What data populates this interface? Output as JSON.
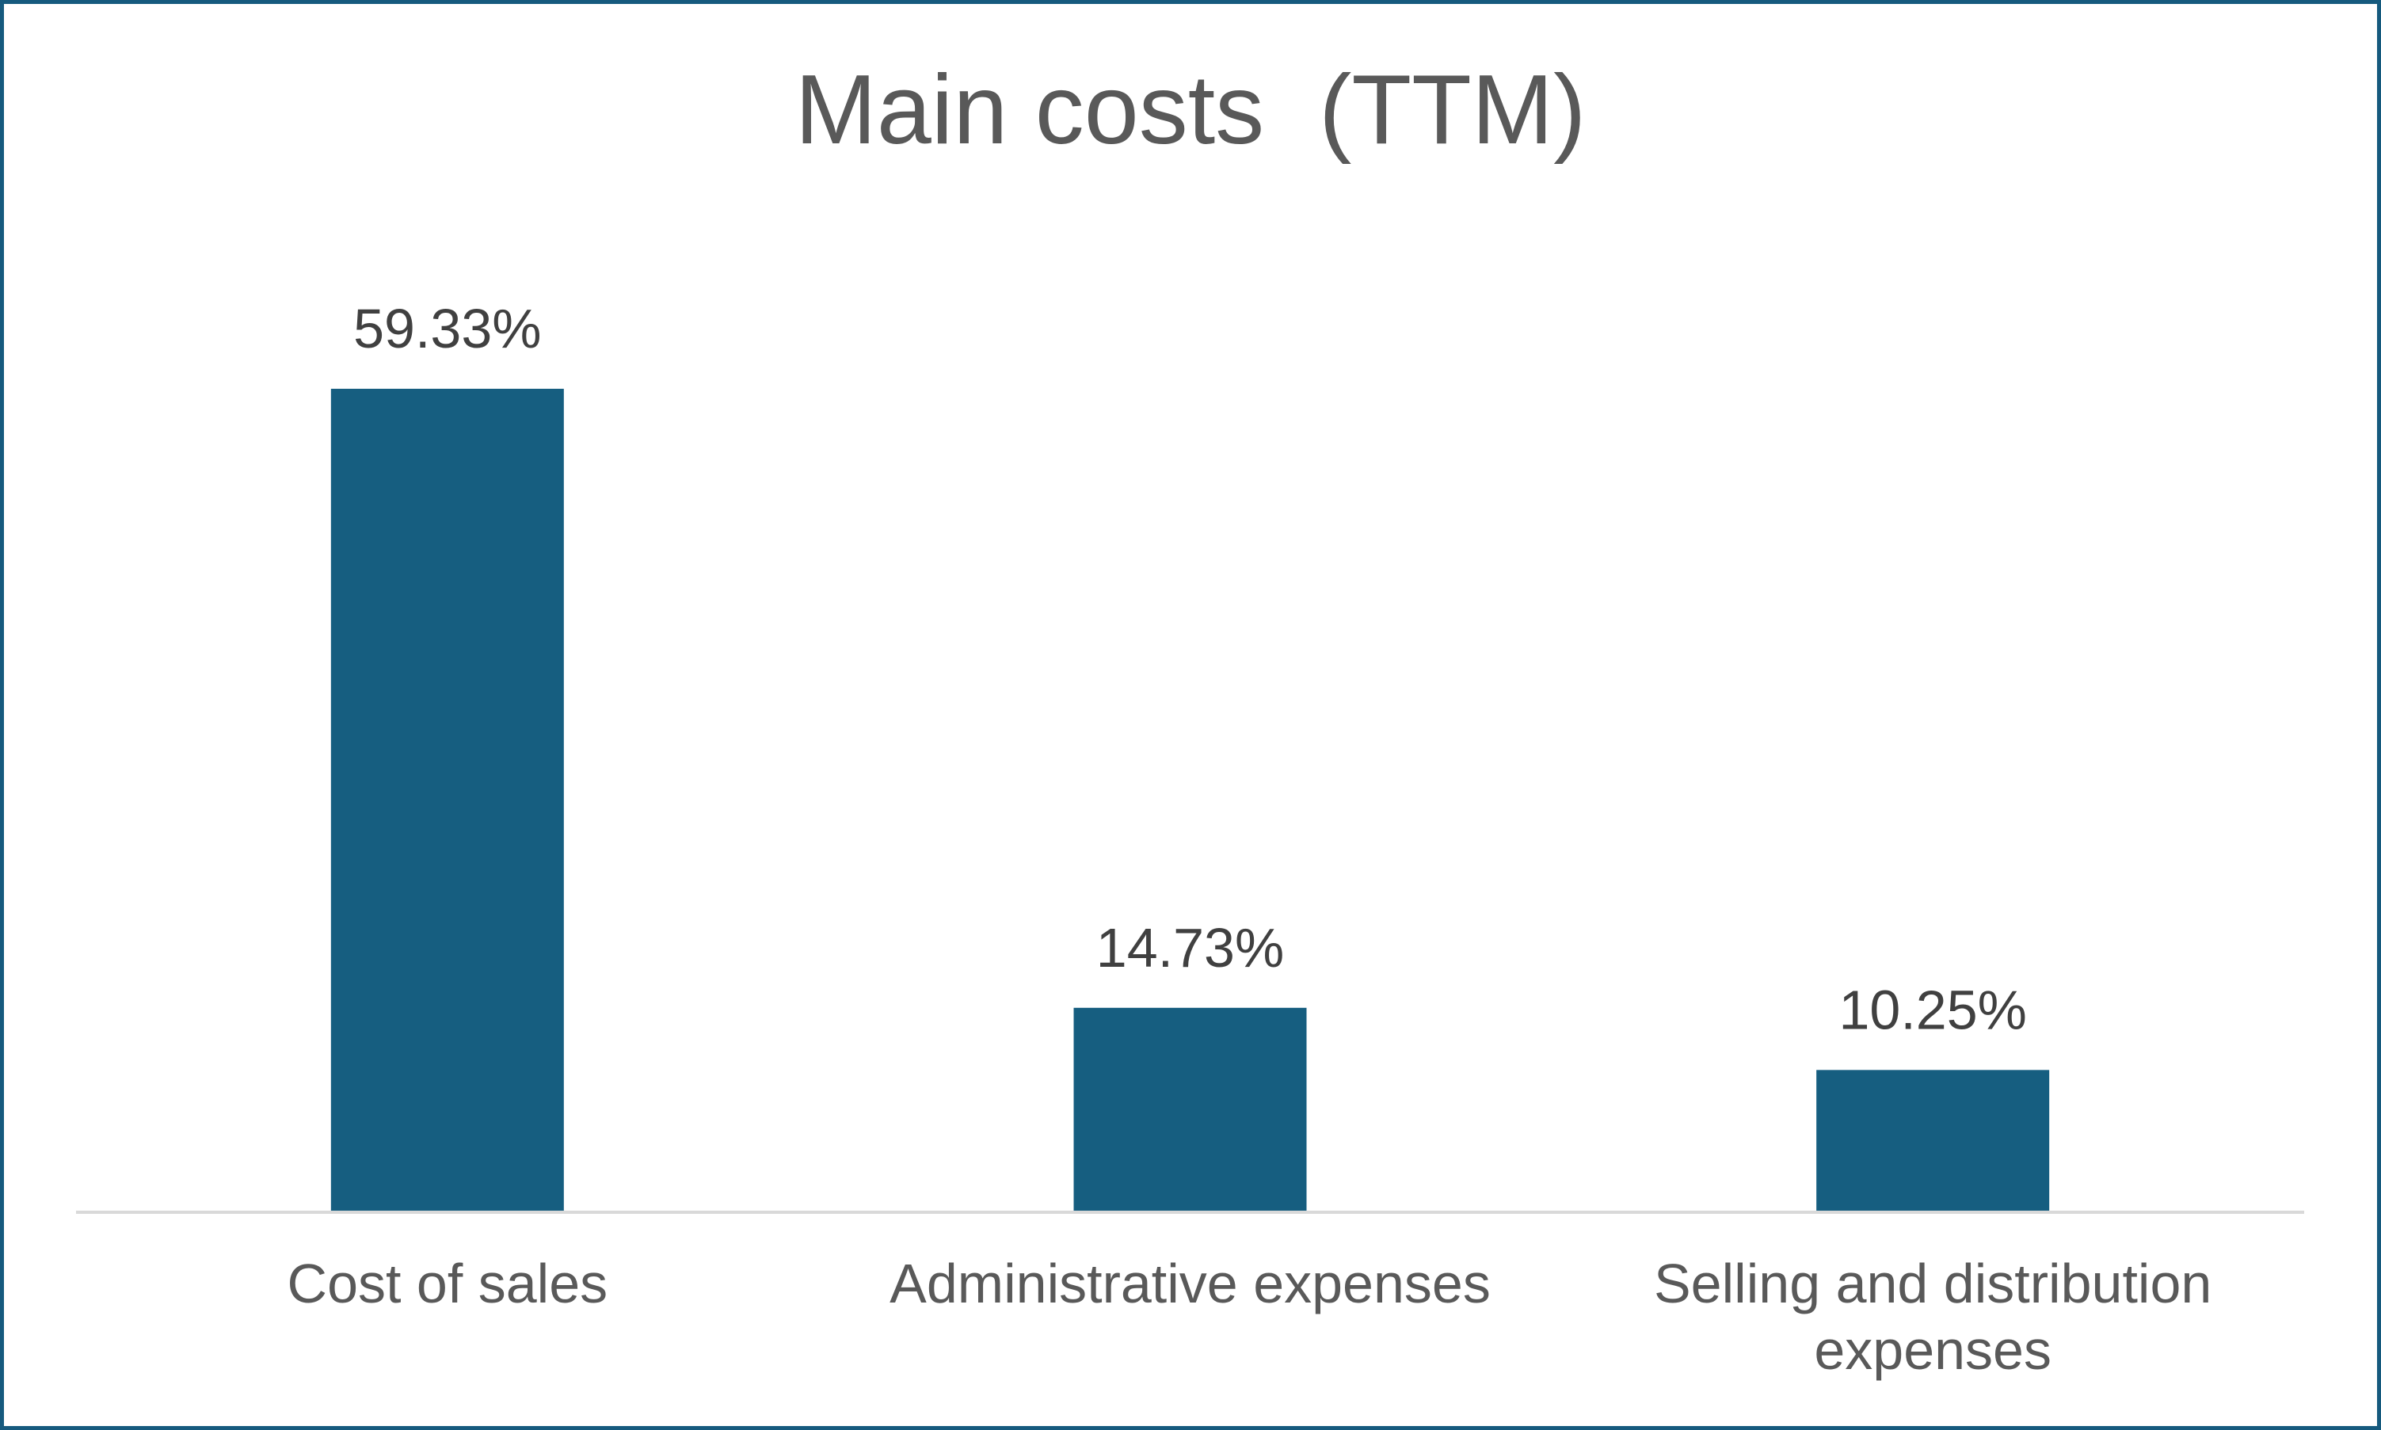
{
  "chart_data": {
    "type": "bar",
    "title": "Main costs  (TTM)",
    "xlabel": "",
    "ylabel": "",
    "categories": [
      [
        "Cost of sales"
      ],
      [
        "Administrative expenses"
      ],
      [
        "Selling and distribution",
        "expenses"
      ]
    ],
    "values": [
      59.33,
      14.73,
      10.25
    ],
    "value_labels": [
      "59.33%",
      "14.73%",
      "10.25%"
    ],
    "unit": "%",
    "ylim": [
      0,
      59.33
    ],
    "grid": false,
    "legend": "none",
    "colors": {
      "bar": "#165e80",
      "frame": "#165a7e",
      "baseline": "#d9d9d9",
      "title": "#595959",
      "label": "#404040"
    }
  }
}
